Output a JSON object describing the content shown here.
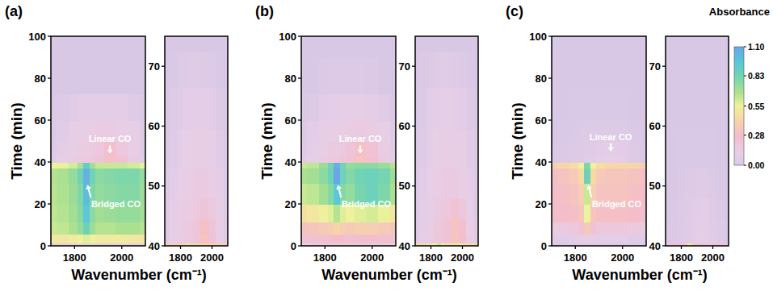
{
  "chart_data": [
    {
      "type": "heatmap",
      "title": "(a)",
      "x_label": "Wavenumber (cm⁻¹)",
      "y_label": "Time (min)",
      "xlim": [
        1700,
        2100
      ],
      "ylim": [
        0,
        100
      ],
      "xticks": [
        1800,
        2000
      ],
      "yticks": [
        0,
        20,
        40,
        60,
        80,
        100
      ],
      "x": [
        1700,
        1750,
        1800,
        1825,
        1850,
        1875,
        1900,
        1950,
        2000,
        2050,
        2100
      ],
      "y": [
        0,
        3,
        8,
        15,
        25,
        35,
        39,
        41,
        45,
        55,
        65,
        80,
        100
      ],
      "values": [
        [
          0.1,
          0.1,
          0.1,
          0.1,
          0.12,
          0.1,
          0.1,
          0.1,
          0.1,
          0.1,
          0.1
        ],
        [
          0.5,
          0.5,
          0.52,
          0.55,
          0.58,
          0.55,
          0.52,
          0.52,
          0.52,
          0.5,
          0.5
        ],
        [
          0.62,
          0.64,
          0.68,
          0.74,
          0.85,
          0.72,
          0.66,
          0.66,
          0.68,
          0.68,
          0.66
        ],
        [
          0.64,
          0.66,
          0.7,
          0.78,
          0.95,
          0.76,
          0.7,
          0.72,
          0.74,
          0.74,
          0.7
        ],
        [
          0.65,
          0.67,
          0.72,
          0.8,
          1.0,
          0.8,
          0.74,
          0.76,
          0.78,
          0.78,
          0.72
        ],
        [
          0.66,
          0.68,
          0.74,
          0.84,
          1.05,
          0.84,
          0.76,
          0.78,
          0.8,
          0.8,
          0.74
        ],
        [
          0.55,
          0.56,
          0.6,
          0.68,
          0.9,
          0.7,
          0.62,
          0.62,
          0.62,
          0.6,
          0.56
        ],
        [
          0.06,
          0.1,
          0.14,
          0.16,
          0.16,
          0.18,
          0.2,
          0.3,
          0.22,
          0.14,
          0.06
        ],
        [
          0.05,
          0.08,
          0.12,
          0.14,
          0.14,
          0.16,
          0.18,
          0.26,
          0.18,
          0.12,
          0.05
        ],
        [
          0.03,
          0.06,
          0.1,
          0.12,
          0.12,
          0.13,
          0.14,
          0.14,
          0.13,
          0.1,
          0.04
        ],
        [
          0.02,
          0.03,
          0.06,
          0.08,
          0.08,
          0.09,
          0.09,
          0.09,
          0.08,
          0.05,
          0.02
        ],
        [
          0,
          0,
          0,
          0,
          0,
          0,
          0,
          0,
          0,
          0,
          0
        ],
        [
          0,
          0,
          0,
          0,
          0,
          0,
          0,
          0,
          0,
          0,
          0
        ]
      ],
      "annotations": [
        {
          "text": "Linear CO",
          "x": 1950,
          "y": 51,
          "target": [
            1950,
            44
          ]
        },
        {
          "text": "Bridged CO",
          "x": 1975,
          "y": 20,
          "target": [
            1855,
            29
          ]
        }
      ]
    },
    {
      "type": "heatmap",
      "xlim": [
        1700,
        2100
      ],
      "ylim": [
        40,
        75
      ],
      "xticks": [
        1800,
        2000
      ],
      "yticks": [
        40,
        50,
        60,
        70
      ],
      "x": [
        1700,
        1750,
        1800,
        1825,
        1850,
        1875,
        1900,
        1950,
        2000,
        2050,
        2100
      ],
      "y": [
        40,
        41,
        43,
        46,
        50,
        56,
        63,
        70,
        75
      ],
      "values": [
        [
          0.4,
          0.4,
          0.42,
          0.45,
          0.5,
          0.45,
          0.42,
          0.42,
          0.42,
          0.4,
          0.4
        ],
        [
          0.05,
          0.1,
          0.14,
          0.16,
          0.16,
          0.18,
          0.2,
          0.32,
          0.22,
          0.12,
          0.05
        ],
        [
          0.05,
          0.09,
          0.13,
          0.15,
          0.15,
          0.17,
          0.19,
          0.3,
          0.2,
          0.12,
          0.05
        ],
        [
          0.04,
          0.08,
          0.12,
          0.14,
          0.14,
          0.16,
          0.17,
          0.2,
          0.16,
          0.1,
          0.04
        ],
        [
          0.03,
          0.07,
          0.11,
          0.13,
          0.13,
          0.14,
          0.15,
          0.15,
          0.13,
          0.09,
          0.03
        ],
        [
          0.02,
          0.05,
          0.09,
          0.11,
          0.11,
          0.12,
          0.12,
          0.12,
          0.1,
          0.06,
          0.02
        ],
        [
          0.01,
          0.03,
          0.06,
          0.08,
          0.08,
          0.09,
          0.09,
          0.09,
          0.07,
          0.04,
          0.01
        ],
        [
          0,
          0.01,
          0.03,
          0.04,
          0.05,
          0.05,
          0.05,
          0.04,
          0.03,
          0.01,
          0
        ],
        [
          0,
          0,
          0,
          0,
          0,
          0,
          0,
          0,
          0,
          0,
          0
        ]
      ]
    },
    {
      "type": "heatmap",
      "title": "(b)",
      "x_label": "Wavenumber (cm⁻¹)",
      "y_label": "Time (min)",
      "xlim": [
        1700,
        2100
      ],
      "ylim": [
        0,
        100
      ],
      "xticks": [
        1800,
        2000
      ],
      "yticks": [
        0,
        20,
        40,
        60,
        80,
        100
      ],
      "x": [
        1700,
        1750,
        1800,
        1825,
        1850,
        1875,
        1900,
        1950,
        2000,
        2050,
        2100
      ],
      "y": [
        0,
        3,
        8,
        15,
        25,
        35,
        39,
        41,
        45,
        55,
        65,
        80,
        100
      ],
      "values": [
        [
          0.12,
          0.12,
          0.14,
          0.14,
          0.16,
          0.14,
          0.14,
          0.14,
          0.14,
          0.12,
          0.12
        ],
        [
          0.22,
          0.22,
          0.24,
          0.26,
          0.28,
          0.26,
          0.24,
          0.26,
          0.26,
          0.24,
          0.22
        ],
        [
          0.32,
          0.33,
          0.36,
          0.38,
          0.42,
          0.38,
          0.36,
          0.38,
          0.38,
          0.36,
          0.34
        ],
        [
          0.48,
          0.5,
          0.54,
          0.58,
          0.66,
          0.58,
          0.55,
          0.58,
          0.6,
          0.56,
          0.5
        ],
        [
          0.62,
          0.64,
          0.7,
          0.78,
          0.95,
          0.78,
          0.74,
          0.82,
          0.86,
          0.8,
          0.68
        ],
        [
          0.68,
          0.7,
          0.76,
          0.86,
          1.1,
          0.86,
          0.78,
          0.84,
          0.86,
          0.82,
          0.72
        ],
        [
          0.62,
          0.64,
          0.72,
          0.84,
          1.05,
          0.84,
          0.74,
          0.76,
          0.76,
          0.72,
          0.66
        ],
        [
          0.06,
          0.1,
          0.14,
          0.18,
          0.18,
          0.2,
          0.22,
          0.32,
          0.26,
          0.16,
          0.06
        ],
        [
          0.05,
          0.08,
          0.12,
          0.15,
          0.15,
          0.17,
          0.2,
          0.3,
          0.22,
          0.14,
          0.05
        ],
        [
          0.04,
          0.07,
          0.1,
          0.12,
          0.12,
          0.13,
          0.14,
          0.15,
          0.14,
          0.1,
          0.04
        ],
        [
          0.02,
          0.04,
          0.07,
          0.09,
          0.09,
          0.1,
          0.1,
          0.1,
          0.09,
          0.06,
          0.02
        ],
        [
          0,
          0,
          0.02,
          0.03,
          0.03,
          0.03,
          0.03,
          0.03,
          0.02,
          0,
          0
        ],
        [
          0,
          0,
          0,
          0,
          0,
          0,
          0,
          0,
          0,
          0,
          0
        ]
      ],
      "annotations": [
        {
          "text": "Linear CO",
          "x": 1950,
          "y": 51,
          "target": [
            1950,
            44
          ]
        },
        {
          "text": "Bridged CO",
          "x": 1975,
          "y": 20,
          "target": [
            1855,
            29
          ]
        }
      ]
    },
    {
      "type": "heatmap",
      "xlim": [
        1700,
        2100
      ],
      "ylim": [
        40,
        75
      ],
      "xticks": [
        1800,
        2000
      ],
      "yticks": [
        40,
        50,
        60,
        70
      ],
      "x": [
        1700,
        1750,
        1800,
        1825,
        1850,
        1875,
        1900,
        1950,
        2000,
        2050,
        2100
      ],
      "y": [
        40,
        41,
        43,
        46,
        50,
        56,
        63,
        70,
        75
      ],
      "values": [
        [
          0.45,
          0.46,
          0.5,
          0.55,
          0.62,
          0.55,
          0.5,
          0.5,
          0.5,
          0.46,
          0.45
        ],
        [
          0.05,
          0.1,
          0.14,
          0.18,
          0.18,
          0.2,
          0.22,
          0.34,
          0.26,
          0.14,
          0.05
        ],
        [
          0.05,
          0.09,
          0.13,
          0.17,
          0.17,
          0.19,
          0.21,
          0.32,
          0.24,
          0.13,
          0.05
        ],
        [
          0.04,
          0.08,
          0.12,
          0.15,
          0.15,
          0.17,
          0.18,
          0.22,
          0.17,
          0.1,
          0.04
        ],
        [
          0.03,
          0.07,
          0.11,
          0.13,
          0.13,
          0.15,
          0.15,
          0.15,
          0.13,
          0.09,
          0.03
        ],
        [
          0.02,
          0.05,
          0.09,
          0.11,
          0.12,
          0.12,
          0.12,
          0.12,
          0.1,
          0.06,
          0.02
        ],
        [
          0.01,
          0.04,
          0.07,
          0.09,
          0.09,
          0.1,
          0.1,
          0.09,
          0.07,
          0.04,
          0.01
        ],
        [
          0,
          0.02,
          0.04,
          0.05,
          0.06,
          0.06,
          0.06,
          0.05,
          0.03,
          0.01,
          0
        ],
        [
          0,
          0,
          0,
          0,
          0,
          0,
          0,
          0,
          0,
          0,
          0
        ]
      ]
    },
    {
      "type": "heatmap",
      "title": "(c)",
      "x_label": "Wavenumber (cm⁻¹)",
      "y_label": "Time (min)",
      "xlim": [
        1700,
        2100
      ],
      "ylim": [
        0,
        100
      ],
      "xticks": [
        1800,
        2000
      ],
      "yticks": [
        0,
        20,
        40,
        60,
        80,
        100
      ],
      "x": [
        1700,
        1750,
        1800,
        1825,
        1850,
        1875,
        1900,
        1950,
        2000,
        2050,
        2100
      ],
      "y": [
        0,
        3,
        8,
        15,
        25,
        35,
        39,
        41,
        45,
        55,
        65,
        80,
        100
      ],
      "values": [
        [
          0.02,
          0.02,
          0.03,
          0.04,
          0.04,
          0.03,
          0.03,
          0.03,
          0.03,
          0.02,
          0.02
        ],
        [
          0.06,
          0.06,
          0.08,
          0.1,
          0.12,
          0.1,
          0.08,
          0.08,
          0.08,
          0.06,
          0.06
        ],
        [
          0.14,
          0.15,
          0.18,
          0.22,
          0.35,
          0.22,
          0.18,
          0.18,
          0.18,
          0.16,
          0.14
        ],
        [
          0.26,
          0.28,
          0.3,
          0.34,
          0.55,
          0.34,
          0.3,
          0.3,
          0.3,
          0.28,
          0.26
        ],
        [
          0.28,
          0.3,
          0.32,
          0.38,
          0.62,
          0.38,
          0.32,
          0.32,
          0.32,
          0.3,
          0.28
        ],
        [
          0.3,
          0.32,
          0.36,
          0.45,
          0.85,
          0.45,
          0.36,
          0.34,
          0.34,
          0.32,
          0.3
        ],
        [
          0.4,
          0.42,
          0.46,
          0.55,
          0.8,
          0.55,
          0.46,
          0.44,
          0.44,
          0.42,
          0.4
        ],
        [
          0.01,
          0.02,
          0.04,
          0.05,
          0.06,
          0.06,
          0.08,
          0.1,
          0.08,
          0.04,
          0.01
        ],
        [
          0.01,
          0.02,
          0.03,
          0.04,
          0.05,
          0.05,
          0.07,
          0.09,
          0.07,
          0.03,
          0.01
        ],
        [
          0,
          0.01,
          0.02,
          0.03,
          0.03,
          0.03,
          0.04,
          0.04,
          0.03,
          0.02,
          0
        ],
        [
          0,
          0,
          0.01,
          0.01,
          0.01,
          0.01,
          0.01,
          0.01,
          0.01,
          0,
          0
        ],
        [
          0,
          0,
          0,
          0,
          0,
          0,
          0,
          0,
          0,
          0,
          0
        ],
        [
          0,
          0,
          0,
          0,
          0,
          0,
          0,
          0,
          0,
          0,
          0
        ]
      ],
      "annotations": [
        {
          "text": "Linear CO",
          "x": 1950,
          "y": 52,
          "target": [
            1950,
            45
          ]
        },
        {
          "text": "Bridged CO",
          "x": 1975,
          "y": 20,
          "target": [
            1855,
            29
          ]
        }
      ]
    },
    {
      "type": "heatmap",
      "xlim": [
        1700,
        2100
      ],
      "ylim": [
        40,
        75
      ],
      "xticks": [
        1800,
        2000
      ],
      "yticks": [
        40,
        50,
        60,
        70
      ],
      "x": [
        1700,
        1750,
        1800,
        1825,
        1850,
        1875,
        1900,
        1950,
        2000,
        2050,
        2100
      ],
      "y": [
        40,
        41,
        43,
        46,
        50,
        56,
        63,
        70,
        75
      ],
      "values": [
        [
          0.2,
          0.22,
          0.26,
          0.35,
          0.55,
          0.35,
          0.26,
          0.24,
          0.24,
          0.22,
          0.2
        ],
        [
          0.01,
          0.02,
          0.04,
          0.05,
          0.06,
          0.07,
          0.09,
          0.1,
          0.07,
          0.03,
          0.01
        ],
        [
          0.01,
          0.02,
          0.03,
          0.05,
          0.05,
          0.06,
          0.08,
          0.09,
          0.06,
          0.03,
          0.01
        ],
        [
          0,
          0.01,
          0.03,
          0.04,
          0.05,
          0.06,
          0.07,
          0.08,
          0.05,
          0.02,
          0
        ],
        [
          0,
          0,
          0.02,
          0.03,
          0.03,
          0.04,
          0.05,
          0.05,
          0.03,
          0.01,
          0
        ],
        [
          0,
          0,
          0.01,
          0.01,
          0.01,
          0.01,
          0.01,
          0.01,
          0.01,
          0,
          0
        ],
        [
          0,
          0,
          0,
          0,
          0,
          0,
          0,
          0,
          0,
          0,
          0
        ],
        [
          0,
          0,
          0,
          0,
          0,
          0,
          0,
          0,
          0,
          0,
          0
        ],
        [
          0,
          0,
          0,
          0,
          0,
          0,
          0,
          0,
          0,
          0,
          0
        ]
      ]
    }
  ],
  "colorbar": {
    "title": "Absorbance",
    "range": [
      0,
      1.1
    ],
    "ticks": [
      {
        "value": 0,
        "label": "0.00"
      },
      0.28,
      0.55,
      0.83,
      {
        "value": 1.1,
        "label": "1.10"
      }
    ]
  }
}
